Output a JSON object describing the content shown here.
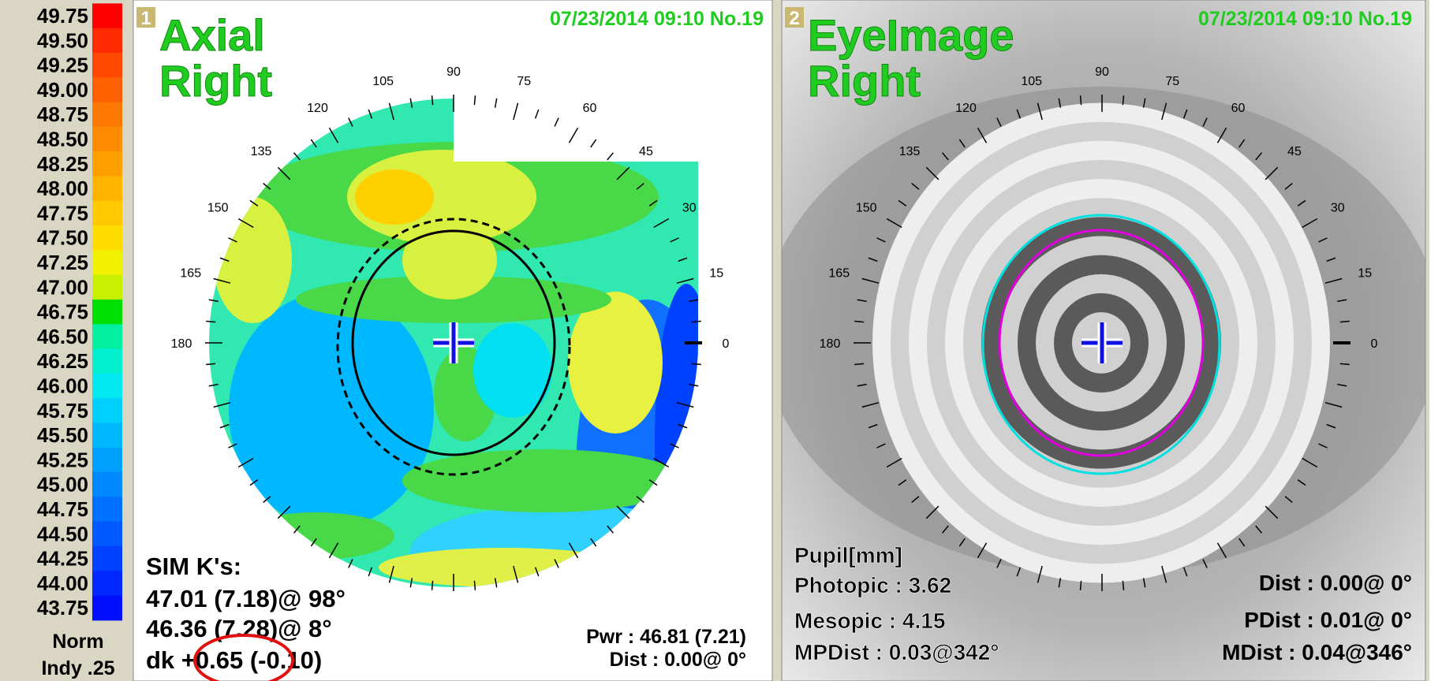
{
  "scale": {
    "items": [
      {
        "label": "49.75",
        "color": "#ff0000"
      },
      {
        "label": "49.50",
        "color": "#ff2a00"
      },
      {
        "label": "49.25",
        "color": "#ff4800"
      },
      {
        "label": "49.00",
        "color": "#ff6000"
      },
      {
        "label": "48.75",
        "color": "#ff7800"
      },
      {
        "label": "48.50",
        "color": "#ff8c00"
      },
      {
        "label": "48.25",
        "color": "#ffa000"
      },
      {
        "label": "48.00",
        "color": "#ffb400"
      },
      {
        "label": "47.75",
        "color": "#ffc800"
      },
      {
        "label": "47.50",
        "color": "#ffdc00"
      },
      {
        "label": "47.25",
        "color": "#f0f000"
      },
      {
        "label": "47.00",
        "color": "#c8f000"
      },
      {
        "label": "46.75",
        "color": "#00e000"
      },
      {
        "label": "46.50",
        "color": "#00f0a0"
      },
      {
        "label": "46.25",
        "color": "#00f0d0"
      },
      {
        "label": "46.00",
        "color": "#00e8f0"
      },
      {
        "label": "45.75",
        "color": "#00d0ff"
      },
      {
        "label": "45.50",
        "color": "#00b8ff"
      },
      {
        "label": "45.25",
        "color": "#00a0ff"
      },
      {
        "label": "45.00",
        "color": "#0088ff"
      },
      {
        "label": "44.75",
        "color": "#0070ff"
      },
      {
        "label": "44.50",
        "color": "#0058ff"
      },
      {
        "label": "44.25",
        "color": "#0040ff"
      },
      {
        "label": "44.00",
        "color": "#0028ff"
      },
      {
        "label": "43.75",
        "color": "#0010ff"
      }
    ],
    "norm": "Norm",
    "step": "Indy .25"
  },
  "panels": [
    {
      "number": "1",
      "title": "Axial",
      "eye": "Right",
      "timestamp": "07/23/2014 09:10 No.19",
      "angles": [
        0,
        15,
        30,
        45,
        60,
        75,
        90,
        105,
        120,
        135,
        150,
        165,
        180
      ],
      "info_left": [
        "SIM K's:",
        "47.01 (7.18)@ 98°",
        "46.36 (7.28)@  8°",
        "dk +0.65 (-0.10)"
      ],
      "info_right": [
        "Pwr :  46.81 (7.21)",
        "Dist :  0.00@  0°"
      ]
    },
    {
      "number": "2",
      "title": "EyeImage",
      "eye": "Right",
      "timestamp": "07/23/2014 09:10 No.19",
      "angles": [
        0,
        15,
        30,
        45,
        60,
        75,
        90,
        105,
        120,
        135,
        150,
        165,
        180
      ],
      "info_left": [
        "Pupil[mm]",
        "Photopic : 3.62",
        "Mesopic : 4.15",
        "MPDist :  0.03@342°"
      ],
      "info_right": [
        "Dist :  0.00@  0°",
        "PDist :  0.01@  0°",
        "MDist :  0.04@346°"
      ]
    }
  ]
}
